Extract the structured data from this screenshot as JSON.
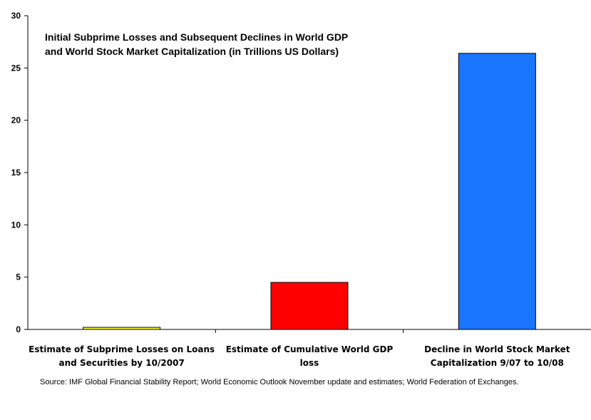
{
  "chart_data": {
    "type": "bar",
    "title": [
      "Initial Subprime Losses and Subsequent Declines in World GDP",
      "and World Stock Market Capitalization (in Trillions US Dollars)"
    ],
    "categories": [
      [
        "Estimate of Subprime Losses on Loans",
        "and Securities by 10/2007"
      ],
      [
        "Estimate of Cumulative World GDP",
        "loss"
      ],
      [
        "Decline in World Stock Market",
        "Capitalization 9/07 to 10/08"
      ]
    ],
    "values": [
      0.2,
      4.5,
      26.4
    ],
    "bar_colors": [
      "#ffff33",
      "#ff0000",
      "#1a75ff"
    ],
    "ylim": [
      0,
      30
    ],
    "yticks": [
      0,
      5,
      10,
      15,
      20,
      25,
      30
    ],
    "grid": false,
    "legend": "none"
  },
  "source_note": "Source: IMF Global Financial Stability Report; World Economic Outlook November update and estimates; World Federation of Exchanges."
}
